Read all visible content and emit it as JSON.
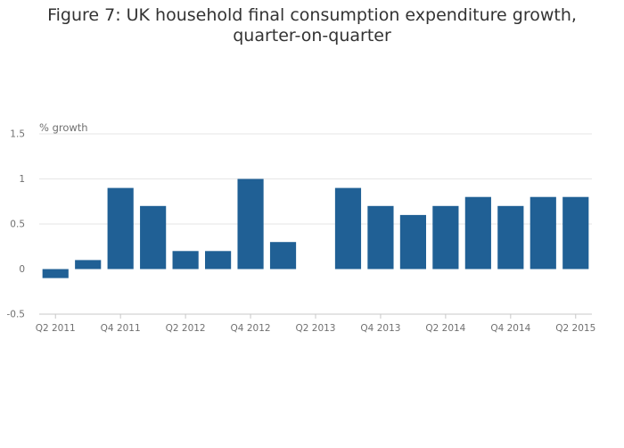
{
  "chart_data": {
    "type": "bar",
    "title": "Figure 7: UK household final consumption expenditure growth, quarter-on-quarter",
    "ylabel": "% growth",
    "xlabel": "",
    "ylim": [
      -0.5,
      1.5
    ],
    "yticks": [
      "-0.5",
      "0",
      "0.5",
      "1",
      "1.5"
    ],
    "grid": true,
    "legend": "none",
    "bar_color": "#206095",
    "categories": [
      "Q2 2011",
      "Q3 2011",
      "Q4 2011",
      "Q1 2012",
      "Q2 2012",
      "Q3 2012",
      "Q4 2012",
      "Q1 2013",
      "Q2 2013",
      "Q3 2013",
      "Q4 2013",
      "Q1 2014",
      "Q2 2014",
      "Q3 2014",
      "Q4 2014",
      "Q1 2015",
      "Q2 2015"
    ],
    "values": [
      -0.1,
      0.1,
      0.9,
      0.7,
      0.2,
      0.2,
      1.0,
      0.3,
      0.0,
      0.9,
      0.7,
      0.6,
      0.7,
      0.8,
      0.7,
      0.8,
      0.8
    ],
    "xtick_labels": [
      "Q2 2011",
      "Q4 2011",
      "Q2 2012",
      "Q4 2012",
      "Q2 2013",
      "Q4 2013",
      "Q2 2014",
      "Q4 2014",
      "Q2 2015"
    ]
  }
}
